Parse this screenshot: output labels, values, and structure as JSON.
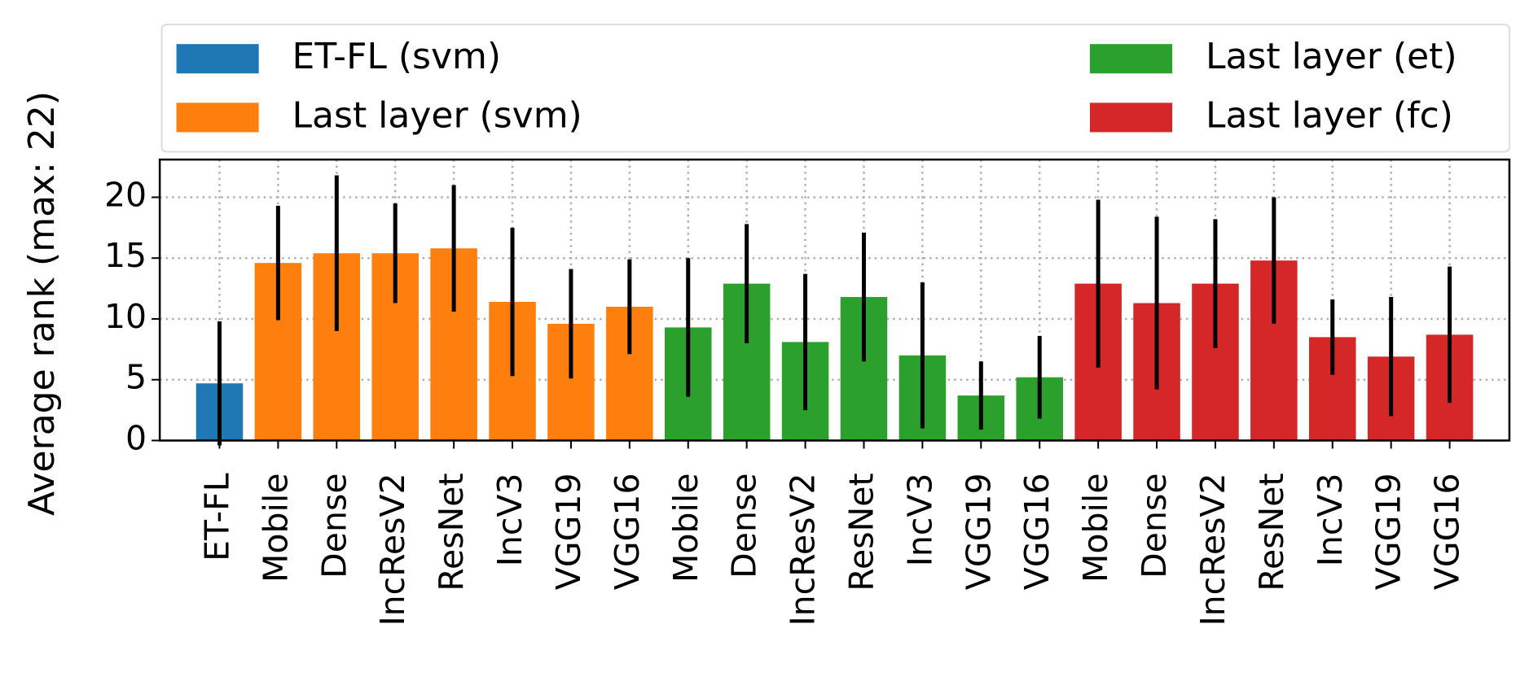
{
  "chart_data": {
    "type": "bar",
    "ylabel": "Average rank (max: 22)",
    "ylim": [
      0,
      23.1
    ],
    "yticks": [
      0,
      5,
      10,
      15,
      20
    ],
    "grid": true,
    "legend": "top",
    "series": [
      {
        "name": "ET-FL (svm)",
        "color": "#1f77b4",
        "categories": [
          "ET-FL"
        ],
        "values": [
          4.7
        ],
        "errors": [
          5.1
        ]
      },
      {
        "name": "Last layer (svm)",
        "color": "#ff7f0e",
        "categories": [
          "Mobile",
          "Dense",
          "IncResV2",
          "ResNet",
          "IncV3",
          "VGG19",
          "VGG16"
        ],
        "values": [
          14.6,
          15.4,
          15.4,
          15.8,
          11.4,
          9.6,
          11.0
        ],
        "errors": [
          4.7,
          6.4,
          4.1,
          5.2,
          6.1,
          4.5,
          3.9
        ]
      },
      {
        "name": "Last layer (et)",
        "color": "#2ca02c",
        "categories": [
          "Mobile",
          "Dense",
          "IncResV2",
          "ResNet",
          "IncV3",
          "VGG19",
          "VGG16"
        ],
        "values": [
          9.3,
          12.9,
          8.1,
          11.8,
          7.0,
          3.7,
          5.2
        ],
        "errors": [
          5.7,
          4.9,
          5.6,
          5.3,
          6.0,
          2.8,
          3.4
        ]
      },
      {
        "name": "Last layer (fc)",
        "color": "#d62728",
        "categories": [
          "Mobile",
          "Dense",
          "IncResV2",
          "ResNet",
          "IncV3",
          "VGG19",
          "VGG16"
        ],
        "values": [
          12.9,
          11.3,
          12.9,
          14.8,
          8.5,
          6.9,
          8.7
        ],
        "errors": [
          6.9,
          7.1,
          5.3,
          5.2,
          3.1,
          4.9,
          5.6
        ]
      }
    ]
  }
}
